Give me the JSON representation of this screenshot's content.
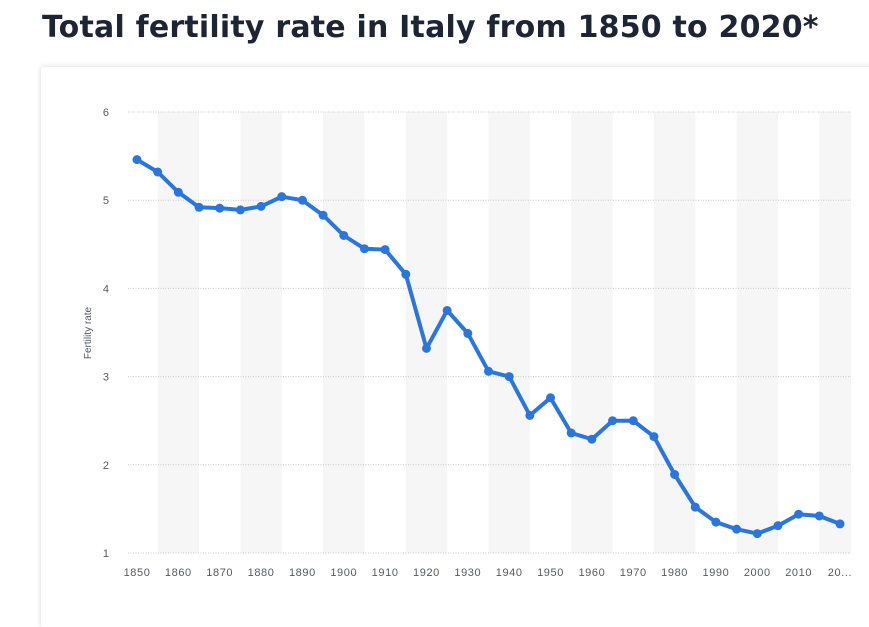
{
  "page": {
    "title": "Total fertility rate in Italy from 1850 to 2020*"
  },
  "chart_data": {
    "type": "line",
    "ylabel": "Fertility rate",
    "xlabel": "",
    "ylim": [
      1,
      6
    ],
    "yticks": [
      1,
      2,
      3,
      4,
      5,
      6
    ],
    "grid": true,
    "x": [
      1850,
      1855,
      1860,
      1865,
      1870,
      1875,
      1880,
      1885,
      1890,
      1895,
      1900,
      1905,
      1910,
      1915,
      1920,
      1925,
      1930,
      1935,
      1940,
      1945,
      1950,
      1955,
      1960,
      1965,
      1970,
      1975,
      1980,
      1985,
      1990,
      1995,
      2000,
      2005,
      2010,
      2015,
      2020
    ],
    "xtick_labels": [
      "1850",
      "1860",
      "1870",
      "1880",
      "1890",
      "1900",
      "1910",
      "1920",
      "1930",
      "1940",
      "1950",
      "1960",
      "1970",
      "1980",
      "1990",
      "2000",
      "2010",
      "20..."
    ],
    "series": [
      {
        "color": "#2a76dd",
        "values": [
          5.46,
          5.32,
          5.09,
          4.92,
          4.91,
          4.89,
          4.93,
          5.04,
          5.0,
          4.83,
          4.6,
          4.45,
          4.44,
          4.16,
          3.32,
          3.75,
          3.49,
          3.06,
          3.0,
          2.56,
          2.76,
          2.36,
          2.29,
          2.5,
          2.5,
          2.32,
          1.89,
          1.52,
          1.35,
          1.27,
          1.22,
          1.31,
          1.44,
          1.42,
          1.33
        ]
      }
    ]
  }
}
